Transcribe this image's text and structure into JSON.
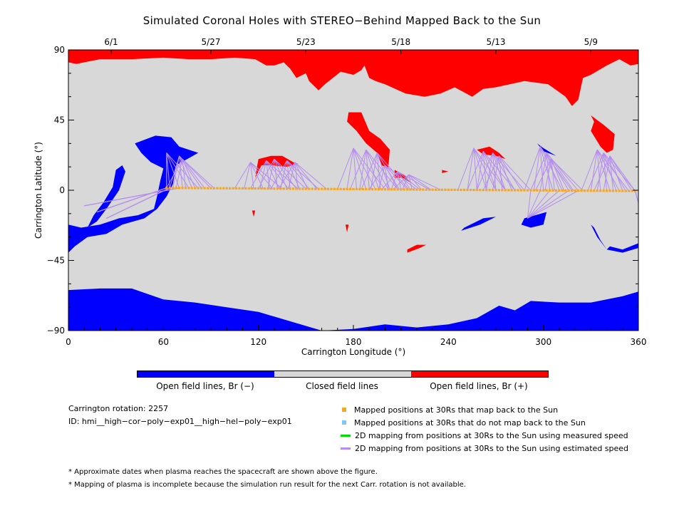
{
  "title": "Simulated Coronal Holes with STEREO−Behind Mapped Back to the Sun",
  "colors": {
    "closed": "#d8d8d8",
    "open_negative": "#0000ff",
    "open_positive": "#ff0000",
    "mapped_ok": "#f5a623",
    "mapped_not": "#7ec8f8",
    "measured_speed": "#00dd00",
    "estimated_speed": "#b58cf0"
  },
  "chart_data": {
    "type": "map",
    "xlabel": "Carrington Longitude (°)",
    "ylabel": "Carrington Latitude (°)",
    "xlim": [
      0,
      360
    ],
    "ylim": [
      -90,
      90
    ],
    "xticks": [
      0,
      60,
      120,
      180,
      240,
      300,
      360
    ],
    "yticks": [
      {
        "value": 90,
        "label": "90"
      },
      {
        "value": 45,
        "label": "45"
      },
      {
        "value": 0,
        "label": "0"
      },
      {
        "value": -45,
        "label": "−45"
      },
      {
        "value": -90,
        "label": "−90"
      }
    ],
    "top_date_ticks": [
      {
        "lon": 27,
        "label": "6/1"
      },
      {
        "lon": 90,
        "label": "5/27"
      },
      {
        "lon": 150,
        "label": "5/23"
      },
      {
        "lon": 210,
        "label": "5/18"
      },
      {
        "lon": 270,
        "label": "5/13"
      },
      {
        "lon": 330,
        "label": "5/9"
      }
    ],
    "regions": [
      {
        "polarity": "+",
        "name": "north polar hole",
        "points": [
          [
            0,
            90
          ],
          [
            360,
            90
          ],
          [
            360,
            81
          ],
          [
            355,
            80
          ],
          [
            348,
            84
          ],
          [
            340,
            80
          ],
          [
            330,
            74
          ],
          [
            325,
            72
          ],
          [
            322,
            58
          ],
          [
            318,
            54
          ],
          [
            314,
            60
          ],
          [
            303,
            68
          ],
          [
            288,
            70
          ],
          [
            270,
            66
          ],
          [
            262,
            65
          ],
          [
            255,
            60
          ],
          [
            244,
            66
          ],
          [
            235,
            62
          ],
          [
            225,
            60
          ],
          [
            213,
            62
          ],
          [
            200,
            68
          ],
          [
            194,
            70
          ],
          [
            190,
            72
          ],
          [
            187,
            80
          ],
          [
            185,
            77
          ],
          [
            180,
            74
          ],
          [
            172,
            76
          ],
          [
            162,
            68
          ],
          [
            158,
            64
          ],
          [
            152,
            70
          ],
          [
            150,
            75
          ],
          [
            148,
            74
          ],
          [
            144,
            72
          ],
          [
            140,
            78
          ],
          [
            136,
            82
          ],
          [
            130,
            80
          ],
          [
            125,
            80
          ],
          [
            118,
            84
          ],
          [
            105,
            85
          ],
          [
            90,
            84
          ],
          [
            76,
            84
          ],
          [
            60,
            85
          ],
          [
            40,
            84
          ],
          [
            20,
            84
          ],
          [
            5,
            81
          ],
          [
            0,
            82
          ]
        ]
      },
      {
        "polarity": "+",
        "name": "descending tongue",
        "points": [
          [
            177,
            50
          ],
          [
            185,
            50
          ],
          [
            190,
            38
          ],
          [
            197,
            33
          ],
          [
            203,
            26
          ],
          [
            202,
            14
          ],
          [
            198,
            16
          ],
          [
            195,
            24
          ],
          [
            188,
            30
          ],
          [
            182,
            38
          ],
          [
            176,
            44
          ]
        ]
      },
      {
        "polarity": "-",
        "name": "south polar hole",
        "points": [
          [
            0,
            -90
          ],
          [
            360,
            -90
          ],
          [
            360,
            -65
          ],
          [
            350,
            -68
          ],
          [
            330,
            -72
          ],
          [
            310,
            -72
          ],
          [
            292,
            -71
          ],
          [
            282,
            -77
          ],
          [
            272,
            -74
          ],
          [
            258,
            -82
          ],
          [
            240,
            -86
          ],
          [
            220,
            -88
          ],
          [
            200,
            -86
          ],
          [
            180,
            -89
          ],
          [
            160,
            -90
          ],
          [
            140,
            -84
          ],
          [
            120,
            -78
          ],
          [
            100,
            -75
          ],
          [
            80,
            -72
          ],
          [
            60,
            -70
          ],
          [
            40,
            -63
          ],
          [
            20,
            -63
          ],
          [
            0,
            -64
          ]
        ]
      },
      {
        "polarity": "-",
        "name": "west hole",
        "points": [
          [
            42,
            30
          ],
          [
            55,
            35
          ],
          [
            65,
            34
          ],
          [
            70,
            28
          ],
          [
            82,
            24
          ],
          [
            75,
            20
          ],
          [
            68,
            16
          ],
          [
            66,
            4
          ],
          [
            62,
            -4
          ],
          [
            56,
            -12
          ],
          [
            48,
            -18
          ],
          [
            34,
            -22
          ],
          [
            24,
            -28
          ],
          [
            12,
            -30
          ],
          [
            4,
            -36
          ],
          [
            0,
            -40
          ],
          [
            0,
            -22
          ],
          [
            8,
            -24
          ],
          [
            20,
            -22
          ],
          [
            32,
            -18
          ],
          [
            44,
            -16
          ],
          [
            54,
            -12
          ],
          [
            56,
            -4
          ],
          [
            58,
            6
          ],
          [
            60,
            14
          ],
          [
            52,
            18
          ],
          [
            46,
            24
          ]
        ]
      },
      {
        "polarity": "-",
        "name": "west thin arc",
        "points": [
          [
            30,
            13
          ],
          [
            34,
            16
          ],
          [
            36,
            12
          ],
          [
            32,
            0
          ],
          [
            24,
            -12
          ],
          [
            18,
            -20
          ],
          [
            12,
            -24
          ],
          [
            16,
            -16
          ],
          [
            22,
            -8
          ],
          [
            28,
            2
          ]
        ]
      },
      {
        "polarity": "+",
        "name": "mid patch",
        "points": [
          [
            120,
            20
          ],
          [
            128,
            22
          ],
          [
            135,
            22
          ],
          [
            142,
            18
          ],
          [
            145,
            17
          ],
          [
            138,
            15
          ],
          [
            128,
            16
          ],
          [
            122,
            16
          ],
          [
            118,
            8
          ],
          [
            119,
            14
          ]
        ]
      },
      {
        "polarity": "+",
        "name": "mid spot 1",
        "points": [
          [
            206,
            13
          ],
          [
            212,
            10
          ],
          [
            216,
            5
          ],
          [
            211,
            8
          ],
          [
            206,
            8
          ]
        ]
      },
      {
        "polarity": "+",
        "name": "mid spot 2",
        "points": [
          [
            236,
            13
          ],
          [
            240,
            12
          ],
          [
            236,
            11
          ]
        ]
      },
      {
        "polarity": "+",
        "name": "east patch",
        "points": [
          [
            258,
            26
          ],
          [
            266,
            28
          ],
          [
            272,
            24
          ],
          [
            276,
            20
          ],
          [
            270,
            22
          ],
          [
            262,
            23
          ]
        ]
      },
      {
        "polarity": "+",
        "name": "south spot",
        "points": [
          [
            214,
            -40
          ],
          [
            222,
            -37
          ],
          [
            226,
            -35
          ],
          [
            220,
            -35
          ],
          [
            214,
            -38
          ]
        ]
      },
      {
        "polarity": "+",
        "name": "lone spot",
        "points": [
          [
            175,
            -22
          ],
          [
            177,
            -22
          ],
          [
            176,
            -27
          ]
        ]
      },
      {
        "polarity": "+",
        "name": "lower lone spot",
        "points": [
          [
            116,
            -13
          ],
          [
            118,
            -13
          ],
          [
            117,
            -17
          ]
        ]
      },
      {
        "polarity": "+",
        "name": "east tongue",
        "points": [
          [
            330,
            48
          ],
          [
            338,
            42
          ],
          [
            345,
            36
          ],
          [
            344,
            26
          ],
          [
            340,
            24
          ],
          [
            336,
            28
          ],
          [
            330,
            38
          ],
          [
            332,
            44
          ]
        ]
      },
      {
        "polarity": "-",
        "name": "east blue 1",
        "points": [
          [
            288,
            -18
          ],
          [
            302,
            -14
          ],
          [
            300,
            -22
          ],
          [
            292,
            -24
          ],
          [
            286,
            -22
          ]
        ]
      },
      {
        "polarity": "-",
        "name": "east blue 2",
        "points": [
          [
            248,
            -26
          ],
          [
            260,
            -22
          ],
          [
            270,
            -17
          ],
          [
            262,
            -18
          ],
          [
            250,
            -24
          ]
        ]
      },
      {
        "polarity": "-",
        "name": "east blue 3",
        "points": [
          [
            296,
            30
          ],
          [
            300,
            27
          ],
          [
            308,
            22
          ],
          [
            300,
            25
          ]
        ]
      },
      {
        "polarity": "-",
        "name": "southeast blue",
        "points": [
          [
            340,
            -38
          ],
          [
            350,
            -40
          ],
          [
            360,
            -37
          ],
          [
            360,
            -34
          ],
          [
            350,
            -38
          ],
          [
            342,
            -36
          ]
        ]
      },
      {
        "polarity": "-",
        "name": "far east arc",
        "points": [
          [
            330,
            -22
          ],
          [
            334,
            -30
          ],
          [
            340,
            -38
          ],
          [
            336,
            -32
          ],
          [
            332,
            -24
          ]
        ]
      }
    ],
    "mapped_points_note": "Mapped positions at 30Rs",
    "footpoints": [
      {
        "lon": 62,
        "lat": 24
      },
      {
        "lon": 70,
        "lat": 22
      },
      {
        "lon": 72,
        "lat": 20
      },
      {
        "lon": 115,
        "lat": 18
      },
      {
        "lon": 125,
        "lat": 19
      },
      {
        "lon": 130,
        "lat": 20
      },
      {
        "lon": 138,
        "lat": 19
      },
      {
        "lon": 143,
        "lat": 18
      },
      {
        "lon": 180,
        "lat": 27
      },
      {
        "lon": 188,
        "lat": 26
      },
      {
        "lon": 195,
        "lat": 24
      },
      {
        "lon": 200,
        "lat": 16
      },
      {
        "lon": 208,
        "lat": 12
      },
      {
        "lon": 215,
        "lat": 10
      },
      {
        "lon": 256,
        "lat": 27
      },
      {
        "lon": 262,
        "lat": 25
      },
      {
        "lon": 268,
        "lat": 24
      },
      {
        "lon": 272,
        "lat": 22
      },
      {
        "lon": 298,
        "lat": 28
      },
      {
        "lon": 302,
        "lat": 24
      },
      {
        "lon": 305,
        "lat": 20
      },
      {
        "lon": 334,
        "lat": 26
      },
      {
        "lon": 338,
        "lat": 24
      },
      {
        "lon": 342,
        "lat": 22
      },
      {
        "lon": 10,
        "lat": -10
      },
      {
        "lon": 18,
        "lat": -14
      },
      {
        "lon": 24,
        "lat": -18
      },
      {
        "lon": 290,
        "lat": -18
      },
      {
        "lon": 360,
        "lat": -8
      }
    ],
    "trajectory": {
      "start_lon": 62,
      "end_lon": 358,
      "start_lat": 1.5,
      "end_lat": -0.5
    }
  },
  "colorbar": {
    "labels": [
      "Open field lines, Br (−)",
      "Closed field lines",
      "Open field lines, Br (+)"
    ]
  },
  "info": {
    "rotation": "Carrington rotation: 2257",
    "id": "ID: hmi__high−cor−poly−exp01__high−hel−poly−exp01"
  },
  "legend": {
    "mapped_ok": "Mapped positions at 30Rs that map back to the Sun",
    "mapped_not": "Mapped positions at 30Rs that do not map back to the Sun",
    "measured": "2D mapping from positions at 30Rs to the Sun using measured speed",
    "estimated": "2D mapping from positions at 30Rs to the Sun using estimated speed"
  },
  "notes": [
    "* Approximate dates when plasma reaches the spacecraft are shown above the figure.",
    "* Mapping of plasma is incomplete because the simulation run result for the next Carr. rotation is not available."
  ]
}
